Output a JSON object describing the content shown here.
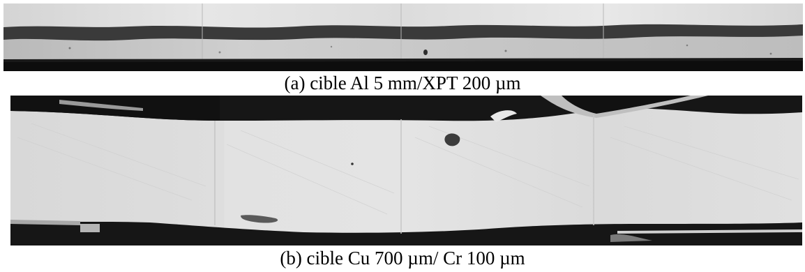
{
  "figure": {
    "panels": [
      {
        "caption": "(a) cible Al 5 mm/XPT 200 µm",
        "description_icon": "micrograph-thin-layer"
      },
      {
        "caption": "(b) cible Cu 700 µm/ Cr 100 µm",
        "description_icon": "micrograph-thick-layer"
      }
    ]
  }
}
